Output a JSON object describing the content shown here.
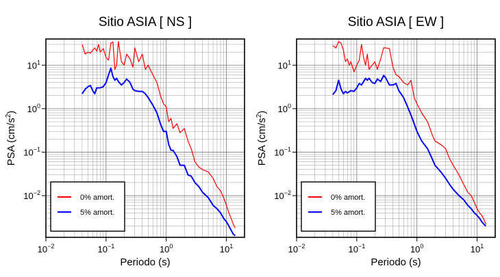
{
  "chart_data": [
    {
      "type": "line",
      "title": "Sitio ASIA [ NS ]",
      "xlabel": "Periodo (s)",
      "ylabel_main": "PSA (cm/s",
      "ylabel_sup": "2",
      "ylabel_end": ")",
      "xscale": "log",
      "yscale": "log",
      "xlim": [
        0.01,
        20
      ],
      "ylim": [
        0.0011,
        40
      ],
      "x_ticks": [
        {
          "base": "10",
          "exp": "−2"
        },
        {
          "base": "10",
          "exp": "−1"
        },
        {
          "base": "10",
          "exp": "0"
        },
        {
          "base": "10",
          "exp": "1"
        }
      ],
      "y_ticks": [
        {
          "base": "10",
          "exp": "−2"
        },
        {
          "base": "10",
          "exp": "−1"
        },
        {
          "base": "10",
          "exp": "0"
        },
        {
          "base": "10",
          "exp": "1"
        }
      ],
      "grid": true,
      "legend_position": "bottom-left",
      "series": [
        {
          "name": "0% amort.",
          "color": "#ff0000",
          "x": [
            0.04,
            0.045,
            0.05,
            0.055,
            0.06,
            0.065,
            0.07,
            0.075,
            0.08,
            0.09,
            0.1,
            0.11,
            0.12,
            0.13,
            0.14,
            0.15,
            0.16,
            0.18,
            0.2,
            0.22,
            0.25,
            0.28,
            0.3,
            0.35,
            0.4,
            0.45,
            0.5,
            0.6,
            0.7,
            0.8,
            0.9,
            1.0,
            1.1,
            1.2,
            1.3,
            1.5,
            1.7,
            2.0,
            2.3,
            2.6,
            3.0,
            3.5,
            4.0,
            5.0,
            6.0,
            7.0,
            8.0,
            9.0,
            10.0,
            11.0,
            12.0,
            13.0,
            14.0
          ],
          "y": [
            30,
            18,
            20,
            19,
            22,
            25,
            21,
            30,
            20,
            24,
            15,
            13,
            32,
            34,
            8,
            10,
            35,
            12,
            10,
            18,
            14,
            9,
            25,
            12,
            18,
            8,
            10,
            6,
            4,
            2.0,
            1.3,
            1.1,
            0.5,
            0.6,
            0.35,
            0.45,
            0.28,
            0.35,
            0.18,
            0.12,
            0.06,
            0.045,
            0.04,
            0.035,
            0.025,
            0.016,
            0.013,
            0.009,
            0.006,
            0.004,
            0.003,
            0.0022,
            0.0018
          ]
        },
        {
          "name": "5% amort.",
          "color": "#0000ff",
          "x": [
            0.04,
            0.045,
            0.05,
            0.055,
            0.06,
            0.065,
            0.07,
            0.08,
            0.09,
            0.1,
            0.11,
            0.12,
            0.13,
            0.14,
            0.15,
            0.16,
            0.18,
            0.2,
            0.22,
            0.25,
            0.28,
            0.3,
            0.35,
            0.4,
            0.45,
            0.5,
            0.6,
            0.7,
            0.8,
            0.9,
            1.0,
            1.1,
            1.2,
            1.3,
            1.5,
            1.7,
            2.0,
            2.3,
            2.6,
            3.0,
            3.5,
            4.0,
            5.0,
            6.0,
            7.0,
            8.0,
            9.0,
            10.0,
            11.0,
            12.0,
            13.0,
            14.0
          ],
          "y": [
            2.2,
            2.8,
            3.2,
            3.4,
            2.6,
            2.2,
            3.0,
            3.0,
            3.2,
            4.0,
            6.0,
            8.5,
            5.5,
            4.5,
            5.0,
            4.2,
            3.5,
            4.0,
            4.8,
            4.0,
            2.8,
            2.6,
            2.5,
            2.5,
            2.2,
            1.8,
            1.2,
            0.8,
            0.45,
            0.3,
            0.3,
            0.15,
            0.11,
            0.11,
            0.08,
            0.05,
            0.05,
            0.03,
            0.028,
            0.02,
            0.016,
            0.012,
            0.009,
            0.006,
            0.005,
            0.004,
            0.003,
            0.0025,
            0.002,
            0.0016,
            0.0013,
            0.0012
          ]
        }
      ]
    },
    {
      "type": "line",
      "title": "Sitio ASIA [ EW ]",
      "xlabel": "Periodo (s)",
      "ylabel_main": "PSA (cm/s",
      "ylabel_sup": "2",
      "ylabel_end": ")",
      "xscale": "log",
      "yscale": "log",
      "xlim": [
        0.01,
        20
      ],
      "ylim": [
        0.0011,
        40
      ],
      "x_ticks": [
        {
          "base": "10",
          "exp": "−2"
        },
        {
          "base": "10",
          "exp": "−1"
        },
        {
          "base": "10",
          "exp": "0"
        },
        {
          "base": "10",
          "exp": "1"
        }
      ],
      "y_ticks": [
        {
          "base": "10",
          "exp": "−2"
        },
        {
          "base": "10",
          "exp": "−1"
        },
        {
          "base": "10",
          "exp": "0"
        },
        {
          "base": "10",
          "exp": "1"
        }
      ],
      "grid": true,
      "legend_position": "bottom-left",
      "series": [
        {
          "name": "0% amort.",
          "color": "#ff0000",
          "x": [
            0.04,
            0.045,
            0.05,
            0.055,
            0.06,
            0.065,
            0.07,
            0.075,
            0.08,
            0.09,
            0.1,
            0.11,
            0.12,
            0.13,
            0.14,
            0.15,
            0.16,
            0.18,
            0.2,
            0.22,
            0.25,
            0.28,
            0.3,
            0.35,
            0.4,
            0.45,
            0.5,
            0.6,
            0.7,
            0.8,
            0.9,
            1.0,
            1.2,
            1.5,
            1.8,
            2.0,
            2.5,
            3.0,
            3.5,
            4.0,
            5.0,
            6.0,
            7.0,
            8.0,
            9.0,
            10.0,
            11.0,
            12.0,
            13.0,
            14.0
          ],
          "y": [
            28,
            25,
            35,
            32,
            22,
            12,
            14,
            10,
            12,
            7,
            10,
            13,
            30,
            15,
            10,
            18,
            8,
            10,
            12,
            8,
            14,
            25,
            25,
            24,
            9,
            6,
            5.5,
            4,
            3.5,
            4.5,
            1.8,
            1.3,
            0.8,
            0.5,
            0.25,
            0.18,
            0.15,
            0.12,
            0.07,
            0.05,
            0.03,
            0.018,
            0.012,
            0.01,
            0.007,
            0.005,
            0.004,
            0.0035,
            0.0028,
            0.0022
          ]
        },
        {
          "name": "5% amort.",
          "color": "#0000ff",
          "x": [
            0.04,
            0.045,
            0.05,
            0.055,
            0.06,
            0.065,
            0.07,
            0.08,
            0.09,
            0.1,
            0.11,
            0.12,
            0.13,
            0.14,
            0.15,
            0.16,
            0.18,
            0.2,
            0.22,
            0.25,
            0.28,
            0.3,
            0.35,
            0.4,
            0.45,
            0.5,
            0.6,
            0.7,
            0.8,
            0.9,
            1.0,
            1.2,
            1.5,
            1.8,
            2.0,
            2.5,
            3.0,
            3.5,
            4.0,
            5.0,
            6.0,
            7.0,
            8.0,
            9.0,
            10.0,
            11.0,
            12.0,
            13.0,
            14.0
          ],
          "y": [
            2.1,
            2.6,
            4.5,
            2.8,
            2.2,
            2.5,
            2.3,
            2.6,
            2.5,
            3.0,
            3.8,
            3.5,
            4.2,
            5.0,
            4.5,
            5.0,
            4.0,
            3.8,
            4.8,
            4.2,
            5.8,
            5.2,
            3.5,
            3.5,
            3.8,
            2.6,
            1.8,
            1.1,
            0.7,
            0.45,
            0.3,
            0.18,
            0.12,
            0.07,
            0.05,
            0.035,
            0.025,
            0.018,
            0.014,
            0.01,
            0.008,
            0.006,
            0.005,
            0.004,
            0.0035,
            0.003,
            0.0025,
            0.0022,
            0.002
          ]
        }
      ]
    }
  ]
}
